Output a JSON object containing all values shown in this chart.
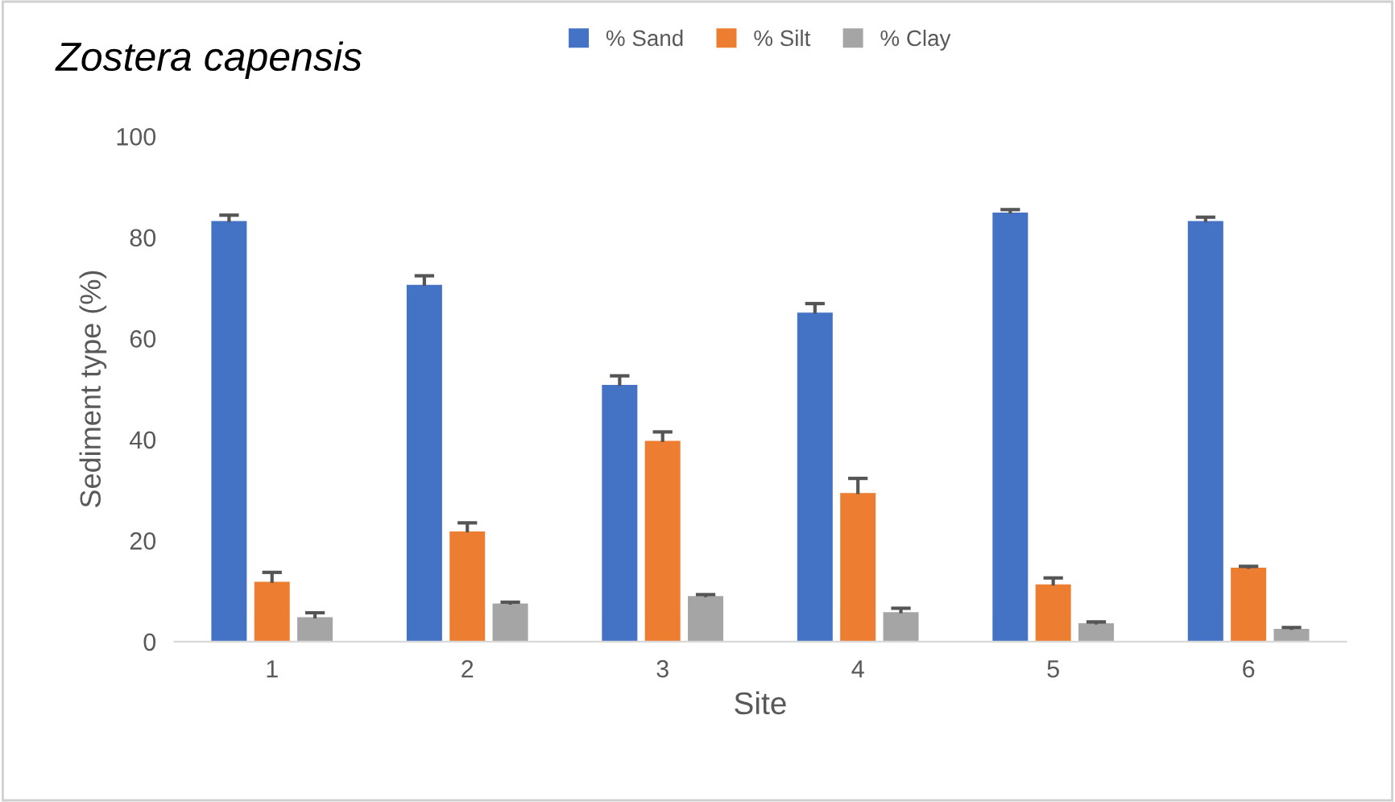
{
  "chart_data": {
    "type": "bar",
    "title": "Zostera capensis",
    "xlabel": "Site",
    "ylabel": "Sediment type (%)",
    "categories": [
      "1",
      "2",
      "3",
      "4",
      "5",
      "6"
    ],
    "series": [
      {
        "name": "% Sand",
        "color": "#4472c4",
        "values": [
          83,
          70.4,
          50.6,
          64.9,
          84.7,
          83
        ],
        "errors": [
          [
            83,
            84.4
          ],
          [
            70.4,
            72.4
          ],
          [
            50.6,
            52.6
          ],
          [
            64.9,
            66.9
          ],
          [
            84.7,
            85.5
          ],
          [
            83,
            84
          ]
        ]
      },
      {
        "name": "% Silt",
        "color": "#ed7d31",
        "values": [
          11.6,
          21.6,
          39.5,
          29.2,
          11.1,
          14.4
        ],
        "errors": [
          [
            11.6,
            13.7
          ],
          [
            21.6,
            23.5
          ],
          [
            39.5,
            41.5
          ],
          [
            29.2,
            32.3
          ],
          [
            11.1,
            12.6
          ],
          [
            14.4,
            14.9
          ]
        ]
      },
      {
        "name": "% Clay",
        "color": "#a5a5a5",
        "values": [
          4.6,
          7.3,
          8.8,
          5.6,
          3.4,
          2.3
        ],
        "errors": [
          [
            4.6,
            5.7
          ],
          [
            7.3,
            7.8
          ],
          [
            8.8,
            9.3
          ],
          [
            5.6,
            6.6
          ],
          [
            3.4,
            3.9
          ],
          [
            2.3,
            2.8
          ]
        ]
      }
    ],
    "ylim": [
      0,
      100
    ],
    "yticks": [
      0,
      20,
      40,
      60,
      80,
      100
    ],
    "grid": false,
    "legend": "top"
  }
}
